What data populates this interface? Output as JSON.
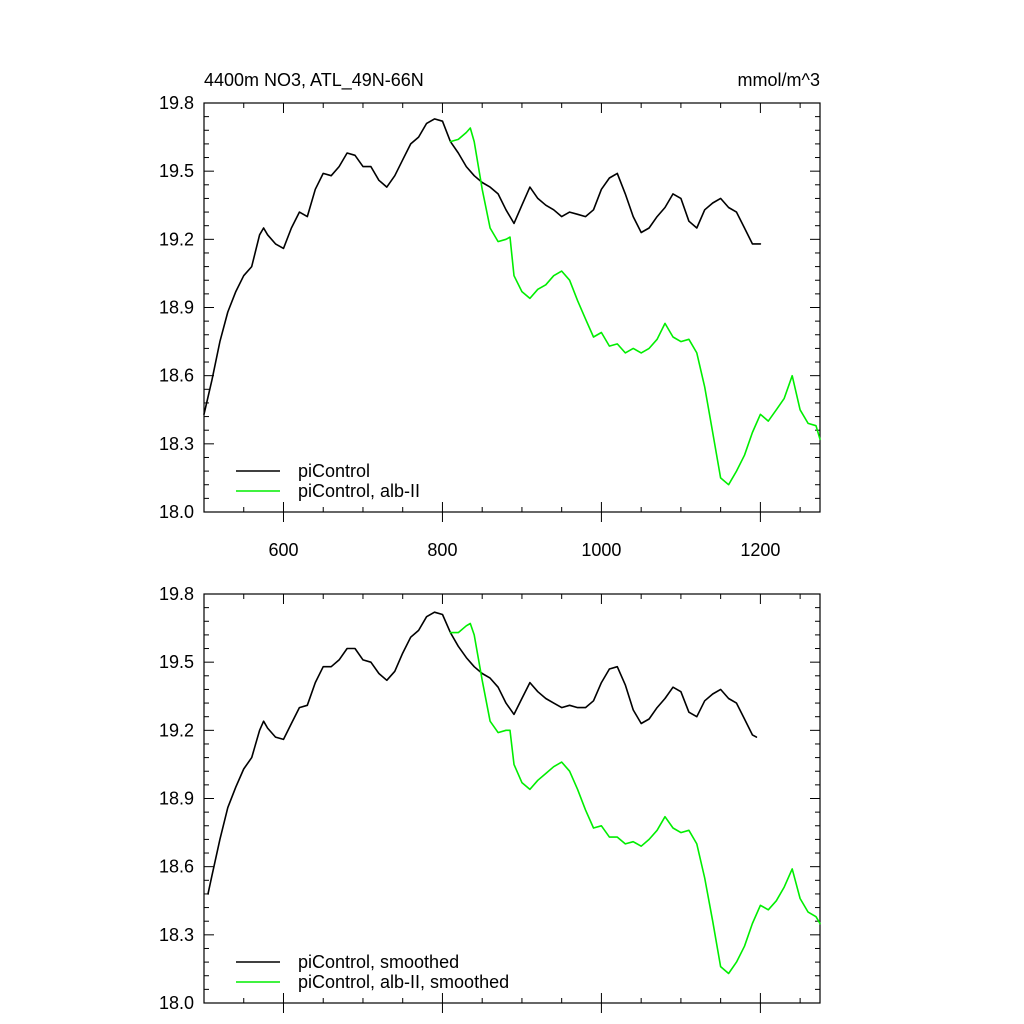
{
  "chart_data": [
    {
      "type": "line",
      "title": "4400m NO3, ATL_49N-66N",
      "units": "mmol/m^3",
      "xlim": [
        500,
        1275
      ],
      "ylim": [
        18.0,
        19.8
      ],
      "xticks": [
        600,
        800,
        1000,
        1200
      ],
      "yticks": [
        18.0,
        18.3,
        18.6,
        18.9,
        19.2,
        19.5,
        19.8
      ],
      "ytick_labels": [
        "18.0",
        "18.3",
        "18.6",
        "18.9",
        "19.2",
        "19.5",
        "19.8"
      ],
      "xtick_labels": [
        "600",
        "800",
        "1000",
        "1200"
      ],
      "legend_position": "bottom-left",
      "series": [
        {
          "name": "piControl",
          "color": "#000000",
          "x": [
            500,
            510,
            520,
            530,
            540,
            550,
            560,
            570,
            575,
            580,
            590,
            600,
            610,
            620,
            630,
            640,
            650,
            660,
            670,
            680,
            690,
            700,
            710,
            720,
            730,
            740,
            750,
            760,
            770,
            780,
            790,
            800,
            810,
            820,
            830,
            840,
            850,
            860,
            870,
            880,
            890,
            900,
            910,
            920,
            930,
            940,
            950,
            960,
            970,
            980,
            990,
            1000,
            1010,
            1020,
            1030,
            1040,
            1050,
            1060,
            1070,
            1080,
            1090,
            1100,
            1110,
            1120,
            1130,
            1140,
            1150,
            1160,
            1170,
            1180,
            1190,
            1200
          ],
          "values": [
            18.43,
            18.58,
            18.75,
            18.88,
            18.97,
            19.04,
            19.08,
            19.22,
            19.25,
            19.22,
            19.18,
            19.16,
            19.25,
            19.32,
            19.3,
            19.42,
            19.49,
            19.48,
            19.52,
            19.58,
            19.57,
            19.52,
            19.52,
            19.46,
            19.43,
            19.48,
            19.55,
            19.62,
            19.65,
            19.71,
            19.73,
            19.72,
            19.63,
            19.58,
            19.52,
            19.48,
            19.45,
            19.43,
            19.4,
            19.33,
            19.27,
            19.35,
            19.43,
            19.38,
            19.35,
            19.33,
            19.3,
            19.32,
            19.31,
            19.3,
            19.33,
            19.42,
            19.47,
            19.49,
            19.4,
            19.3,
            19.23,
            19.25,
            19.3,
            19.34,
            19.4,
            19.38,
            19.28,
            19.25,
            19.33,
            19.36,
            19.38,
            19.34,
            19.32,
            19.25,
            19.18,
            19.18
          ]
        },
        {
          "name": "piControl, alb-II",
          "color": "#00ee00",
          "x": [
            810,
            820,
            830,
            835,
            840,
            850,
            860,
            870,
            880,
            885,
            890,
            900,
            910,
            920,
            930,
            940,
            950,
            960,
            970,
            980,
            990,
            1000,
            1010,
            1020,
            1030,
            1040,
            1050,
            1060,
            1070,
            1080,
            1090,
            1100,
            1110,
            1120,
            1130,
            1140,
            1150,
            1160,
            1170,
            1180,
            1190,
            1200,
            1210,
            1220,
            1230,
            1240,
            1250,
            1260,
            1270,
            1275
          ],
          "values": [
            19.63,
            19.64,
            19.67,
            19.69,
            19.63,
            19.42,
            19.25,
            19.19,
            19.2,
            19.21,
            19.04,
            18.97,
            18.94,
            18.98,
            19.0,
            19.04,
            19.06,
            19.02,
            18.93,
            18.85,
            18.77,
            18.79,
            18.73,
            18.74,
            18.7,
            18.72,
            18.7,
            18.72,
            18.76,
            18.83,
            18.77,
            18.75,
            18.76,
            18.7,
            18.55,
            18.35,
            18.15,
            18.12,
            18.18,
            18.25,
            18.35,
            18.43,
            18.4,
            18.45,
            18.5,
            18.6,
            18.45,
            18.39,
            18.38,
            18.32
          ]
        }
      ]
    },
    {
      "type": "line",
      "xlim": [
        500,
        1275
      ],
      "ylim": [
        18.0,
        19.8
      ],
      "xticks": [
        600,
        800,
        1000,
        1200
      ],
      "yticks": [
        18.0,
        18.3,
        18.6,
        18.9,
        19.2,
        19.5,
        19.8
      ],
      "ytick_labels": [
        "18.0",
        "18.3",
        "18.6",
        "18.9",
        "19.2",
        "19.5",
        "19.8"
      ],
      "legend_position": "bottom-left",
      "series": [
        {
          "name": "piControl, smoothed",
          "color": "#000000",
          "x": [
            505,
            510,
            520,
            530,
            540,
            550,
            560,
            570,
            575,
            580,
            590,
            600,
            610,
            620,
            630,
            640,
            650,
            660,
            670,
            680,
            690,
            700,
            710,
            720,
            730,
            740,
            750,
            760,
            770,
            780,
            790,
            800,
            810,
            820,
            830,
            840,
            850,
            860,
            870,
            880,
            890,
            900,
            910,
            920,
            930,
            940,
            950,
            960,
            970,
            980,
            990,
            1000,
            1010,
            1020,
            1030,
            1040,
            1050,
            1060,
            1070,
            1080,
            1090,
            1100,
            1110,
            1120,
            1130,
            1140,
            1150,
            1160,
            1170,
            1180,
            1190,
            1195
          ],
          "values": [
            18.48,
            18.56,
            18.72,
            18.86,
            18.95,
            19.03,
            19.08,
            19.2,
            19.24,
            19.21,
            19.17,
            19.16,
            19.23,
            19.3,
            19.31,
            19.41,
            19.48,
            19.48,
            19.51,
            19.56,
            19.56,
            19.51,
            19.5,
            19.45,
            19.42,
            19.46,
            19.54,
            19.61,
            19.64,
            19.7,
            19.72,
            19.71,
            19.63,
            19.57,
            19.52,
            19.48,
            19.45,
            19.43,
            19.39,
            19.32,
            19.27,
            19.34,
            19.41,
            19.37,
            19.34,
            19.32,
            19.3,
            19.31,
            19.3,
            19.3,
            19.33,
            19.41,
            19.47,
            19.48,
            19.4,
            19.29,
            19.23,
            19.25,
            19.3,
            19.34,
            19.39,
            19.37,
            19.28,
            19.26,
            19.33,
            19.36,
            19.38,
            19.34,
            19.32,
            19.25,
            19.18,
            19.17
          ]
        },
        {
          "name": "piControl, alb-II, smoothed",
          "color": "#00ee00",
          "x": [
            810,
            820,
            830,
            835,
            840,
            850,
            860,
            870,
            880,
            885,
            890,
            900,
            910,
            920,
            930,
            940,
            950,
            960,
            970,
            980,
            990,
            1000,
            1010,
            1020,
            1030,
            1040,
            1050,
            1060,
            1070,
            1080,
            1090,
            1100,
            1110,
            1120,
            1130,
            1140,
            1150,
            1160,
            1170,
            1180,
            1190,
            1200,
            1210,
            1220,
            1230,
            1240,
            1250,
            1260,
            1270,
            1275
          ],
          "values": [
            19.63,
            19.63,
            19.66,
            19.67,
            19.62,
            19.42,
            19.24,
            19.19,
            19.2,
            19.2,
            19.05,
            18.97,
            18.94,
            18.98,
            19.01,
            19.04,
            19.06,
            19.02,
            18.94,
            18.85,
            18.77,
            18.78,
            18.73,
            18.73,
            18.7,
            18.71,
            18.69,
            18.72,
            18.76,
            18.82,
            18.77,
            18.75,
            18.76,
            18.7,
            18.55,
            18.36,
            18.16,
            18.13,
            18.18,
            18.25,
            18.35,
            18.43,
            18.41,
            18.45,
            18.51,
            18.59,
            18.46,
            18.4,
            18.38,
            18.35
          ]
        }
      ]
    }
  ]
}
